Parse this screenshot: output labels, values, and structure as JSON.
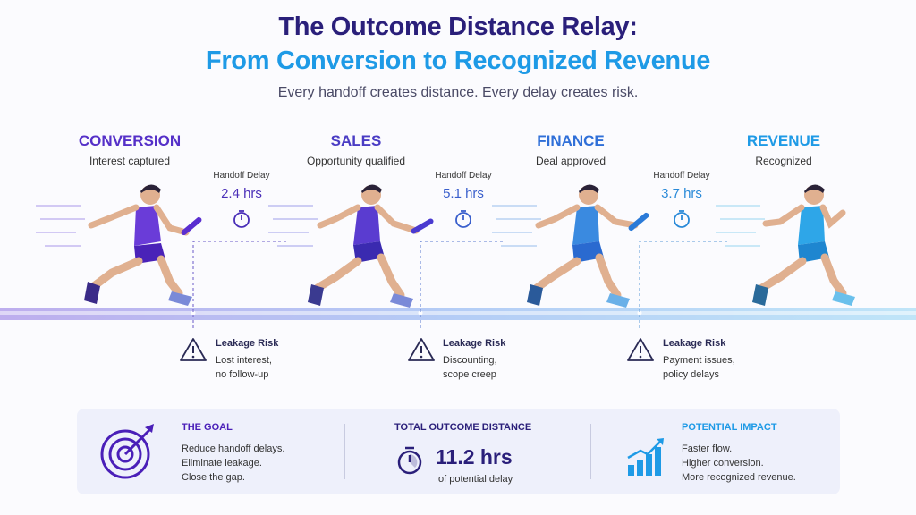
{
  "header": {
    "title_line1": "The Outcome Distance Relay:",
    "title_line2": "From Conversion to Recognized Revenue",
    "subtitle": "Every handoff creates distance. Every delay creates risk."
  },
  "stages": [
    {
      "title": "CONVERSION",
      "subtitle": "Interest captured",
      "color": "#5530c8"
    },
    {
      "title": "SALES",
      "subtitle": "Opportunity qualified",
      "color": "#4a3cc4"
    },
    {
      "title": "FINANCE",
      "subtitle": "Deal approved",
      "color": "#2f6fd8"
    },
    {
      "title": "REVENUE",
      "subtitle": "Recognized",
      "color": "#1e9ae6"
    }
  ],
  "handoffs": [
    {
      "label": "Handoff Delay",
      "value": "2.4 hrs",
      "color": "#4a2fb8"
    },
    {
      "label": "Handoff Delay",
      "value": "5.1 hrs",
      "color": "#3a5fcc"
    },
    {
      "label": "Handoff Delay",
      "value": "3.7 hrs",
      "color": "#2a8ad8"
    }
  ],
  "risks": [
    {
      "title": "Leakage Risk",
      "line1": "Lost interest,",
      "line2": "no follow-up"
    },
    {
      "title": "Leakage Risk",
      "line1": "Discounting,",
      "line2": "scope creep"
    },
    {
      "title": "Leakage Risk",
      "line1": "Payment issues,",
      "line2": "policy delays"
    }
  ],
  "summary": {
    "goal": {
      "title": "THE GOAL",
      "lines": [
        "Reduce handoff delays.",
        "Eliminate leakage.",
        "Close the gap."
      ],
      "color": "#4a1fb8"
    },
    "total": {
      "title": "TOTAL OUTCOME DISTANCE",
      "value": "11.2 hrs",
      "caption": "of potential delay",
      "color": "#2a1f7a"
    },
    "impact": {
      "title": "POTENTIAL IMPACT",
      "lines": [
        "Faster flow.",
        "Higher conversion.",
        "More recognized revenue."
      ],
      "color": "#1e9ae6"
    }
  }
}
